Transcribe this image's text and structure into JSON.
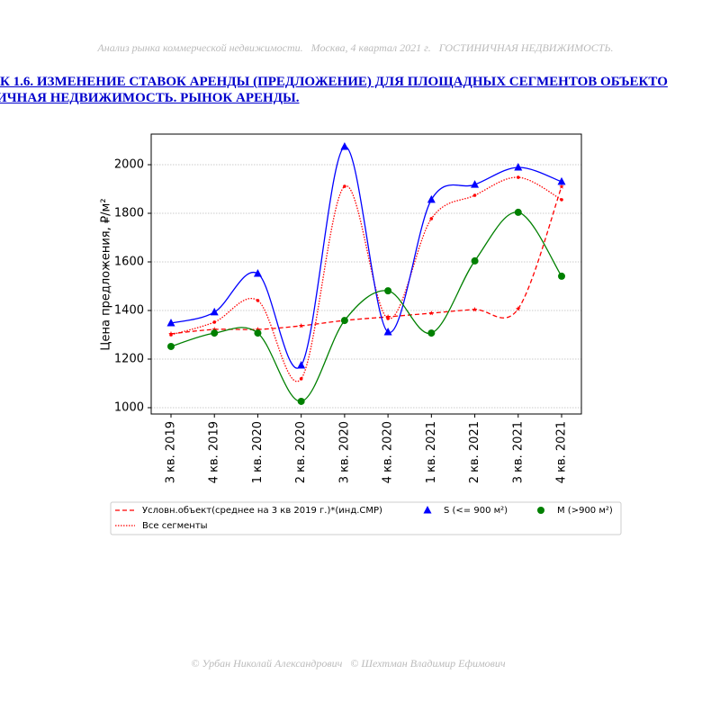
{
  "header": "Анализ рынка коммерческой недвижимости.   Москва, 4 квартал 2021 г.   ГОСТИНИЧНАЯ НЕДВИЖИМОСТЬ.",
  "title_lines": [
    "К 1.6. ИЗМЕНЕНИЕ СТАВОК АРЕНДЫ (ПРЕДЛОЖЕНИЕ) ДЛЯ ПЛОЩАДНЫХ СЕГМЕНТОВ ОБЪЕКТО",
    "ИЧНАЯ НЕДВИЖИМОСТЬ. РЫНОК АРЕНДЫ."
  ],
  "footer": "© Урбан Николай Александрович   © Шехтман Владимир Ефимович",
  "chart_data": {
    "type": "line",
    "y_label": "Цена предложения, ₽/м²",
    "categories": [
      "3 кв. 2019",
      "4 кв. 2019",
      "1 кв. 2020",
      "2 кв. 2020",
      "3 кв. 2020",
      "4 кв. 2020",
      "1 кв. 2021",
      "2 кв. 2021",
      "3 кв. 2021",
      "4 кв. 2021"
    ],
    "ylim": [
      974,
      2126
    ],
    "yticks": [
      1000,
      1200,
      1400,
      1600,
      1800,
      2000
    ],
    "grid": true,
    "series": [
      {
        "name": "Условн.объект(среднее на 3 кв 2019 г.)*(инд.СМР)",
        "color": "#ff0000",
        "line": "dashed",
        "marker": "star",
        "legend_symbol": "line",
        "values": [
          1304,
          1322,
          1322,
          1337,
          1359,
          1374,
          1389,
          1404,
          1407,
          1910
        ]
      },
      {
        "name": "Все сегменты",
        "color": "#ff0000",
        "line": "dotted",
        "marker": "point",
        "legend_symbol": "line",
        "values": [
          1300,
          1352,
          1441,
          1119,
          1911,
          1367,
          1778,
          1874,
          1948,
          1856
        ]
      },
      {
        "name": "S (<= 900 м²)",
        "color": "#0000ff",
        "line": "solid",
        "marker": "triangle",
        "legend_symbol": "marker",
        "values": [
          1348,
          1393,
          1552,
          1174,
          2074,
          1311,
          1856,
          1918,
          1989,
          1930
        ]
      },
      {
        "name": "M (>900 м²)",
        "color": "#008000",
        "line": "solid",
        "marker": "circle",
        "legend_symbol": "marker",
        "values": [
          1252,
          1307,
          1307,
          1026,
          1359,
          1481,
          1307,
          1604,
          1804,
          1541
        ]
      }
    ]
  }
}
